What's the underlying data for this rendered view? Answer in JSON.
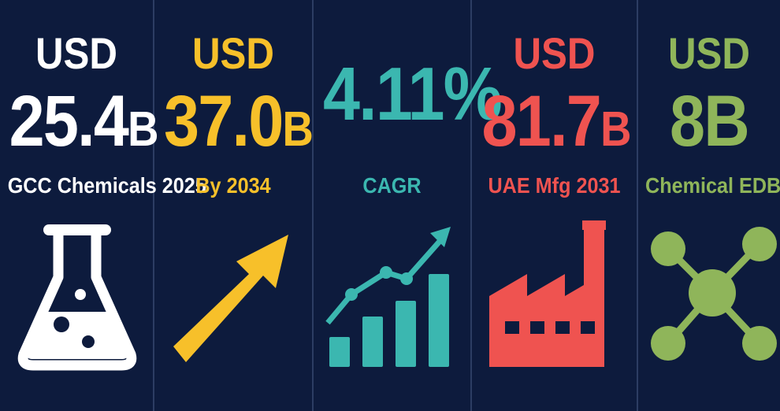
{
  "panels": [
    {
      "prefix": "USD",
      "value": "25.4",
      "unit": "B",
      "label": "GCC Chemicals 2025",
      "color": "#ffffff",
      "icon": "flask-icon"
    },
    {
      "prefix": "USD",
      "value": "37.0",
      "unit": "B",
      "label": "By 2034",
      "color": "#f7c02a",
      "icon": "arrow-up-right-icon"
    },
    {
      "prefix": "",
      "value": "4.11%",
      "unit": "",
      "label": "CAGR",
      "color": "#3bb7b0",
      "icon": "growth-chart-icon"
    },
    {
      "prefix": "USD",
      "value": "81.7",
      "unit": "B",
      "label": "UAE Mfg 2031",
      "color": "#ef5350",
      "icon": "factory-icon"
    },
    {
      "prefix": "USD",
      "value": "8B",
      "unit": "",
      "label": "Chemical EDB",
      "color": "#8fb55a",
      "icon": "molecule-icon"
    }
  ],
  "theme": {
    "background": "#0d1b3d",
    "divider": "#2c3d63"
  }
}
